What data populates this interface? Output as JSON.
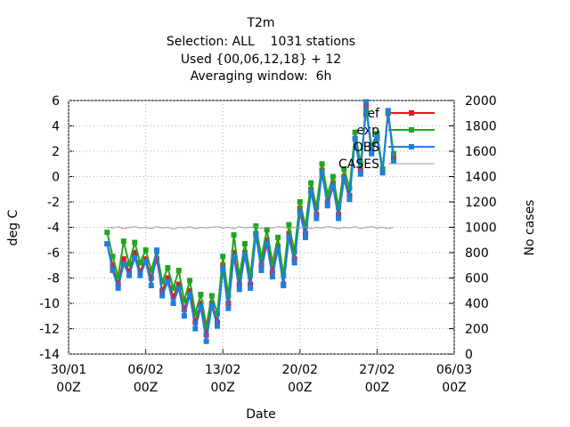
{
  "chart_data": {
    "type": "line",
    "title": "T2m",
    "subtitles": [
      "Selection: ALL    1031 stations",
      "Used {00,06,12,18} + 12",
      "Averaging window:  6h"
    ],
    "xlabel": "Date",
    "ylabel": "deg C",
    "y2label": "No cases",
    "x": [
      "02/02 12Z",
      "03/02 00Z",
      "03/02 12Z",
      "04/02 00Z",
      "04/02 12Z",
      "05/02 00Z",
      "05/02 12Z",
      "06/02 00Z",
      "06/02 12Z",
      "07/02 00Z",
      "07/02 12Z",
      "08/02 00Z",
      "08/02 12Z",
      "09/02 00Z",
      "09/02 12Z",
      "10/02 00Z",
      "10/02 12Z",
      "11/02 00Z",
      "11/02 12Z",
      "12/02 00Z",
      "12/02 12Z",
      "13/02 00Z",
      "13/02 12Z",
      "14/02 00Z",
      "14/02 12Z",
      "15/02 00Z",
      "15/02 12Z",
      "16/02 00Z",
      "16/02 12Z",
      "17/02 00Z",
      "17/02 12Z",
      "18/02 00Z",
      "18/02 12Z",
      "19/02 00Z",
      "19/02 12Z",
      "20/02 00Z",
      "20/02 12Z",
      "21/02 00Z",
      "21/02 12Z",
      "22/02 00Z",
      "22/02 12Z",
      "23/02 00Z",
      "23/02 12Z",
      "24/02 00Z",
      "24/02 12Z",
      "25/02 00Z",
      "25/02 12Z",
      "26/02 00Z",
      "26/02 12Z",
      "27/02 00Z",
      "27/02 12Z",
      "28/02 00Z",
      "28/02 12Z"
    ],
    "series": [
      {
        "name": "ref",
        "color": "#e41a1c",
        "values": [
          -5.3,
          -7,
          -8.5,
          -6.5,
          -7.5,
          -6,
          -7.5,
          -6.5,
          -8,
          -6.5,
          -9,
          -8,
          -9.5,
          -8.5,
          -10.5,
          -9,
          -11.5,
          -10,
          -12.5,
          -10,
          -11.5,
          -7,
          -10,
          -6,
          -8.5,
          -6,
          -8.5,
          -4.5,
          -7,
          -5,
          -7.5,
          -5.5,
          -8.5,
          -4.5,
          -6.5,
          -2.5,
          -4.5,
          -1,
          -3,
          0.5,
          -2,
          -0.5,
          -3,
          0,
          -1.5,
          3,
          0.5,
          5.5,
          2,
          3,
          0.5,
          5,
          1.5
        ]
      },
      {
        "name": "exp",
        "color": "#1fa61f",
        "values": [
          -4.4,
          -6.3,
          -7.9,
          -5.1,
          -6.9,
          -5.2,
          -6.8,
          -5.8,
          -7.4,
          -5.9,
          -8.3,
          -7.2,
          -8.8,
          -7.4,
          -9.8,
          -8.2,
          -10.8,
          -9.3,
          -11.8,
          -9.4,
          -10.8,
          -6.3,
          -9.4,
          -4.6,
          -7.9,
          -5.3,
          -7.8,
          -3.9,
          -6.4,
          -4.2,
          -6.8,
          -4.8,
          -7.8,
          -3.8,
          -5.9,
          -2,
          -3.9,
          -0.5,
          -2.4,
          1,
          -1.4,
          0,
          -2.4,
          0.6,
          -0.9,
          3.5,
          1,
          5.2,
          2.4,
          3.4,
          0.6,
          5.1,
          1.8
        ]
      },
      {
        "name": "OBS",
        "color": "#1e7fe0",
        "values": [
          -5.3,
          -7.4,
          -8.8,
          -6.9,
          -7.8,
          -6.4,
          -7.8,
          -6.7,
          -8.6,
          -5.8,
          -9.4,
          -8.3,
          -10,
          -8.8,
          -11,
          -9.3,
          -12,
          -10.3,
          -13,
          -10.2,
          -11.8,
          -7.3,
          -10.4,
          -6.3,
          -8.9,
          -6.2,
          -8.8,
          -4.6,
          -7.4,
          -5.3,
          -7.9,
          -5.7,
          -8.6,
          -4.8,
          -6.8,
          -2.8,
          -4.8,
          -1.2,
          -3.3,
          0.3,
          -2.3,
          -0.8,
          -3.3,
          -0.2,
          -1.8,
          3,
          0.2,
          5.9,
          1.8,
          3.1,
          0.3,
          5.2,
          1.2
        ]
      },
      {
        "name": "CASES",
        "color": "#999999",
        "axis": "y2",
        "values": [
          1000,
          995,
          1005,
          990,
          1000,
          1005,
          995,
          1000,
          990,
          1005,
          995,
          1000,
          985,
          1000,
          995,
          1005,
          990,
          1000,
          995,
          1000,
          1005,
          995,
          1000,
          990,
          1005,
          995,
          1000,
          1005,
          990,
          1000,
          995,
          1005,
          1000,
          990,
          1000,
          995,
          1005,
          990,
          1000,
          995,
          1005,
          1000,
          990,
          1000,
          995,
          1005,
          990,
          1000,
          1005,
          995,
          1000,
          990,
          1000
        ]
      }
    ],
    "xticks": [
      "30/01 00Z",
      "06/02 00Z",
      "13/02 00Z",
      "20/02 00Z",
      "27/02 00Z",
      "06/03 00Z"
    ],
    "xlim": [
      "30/01 00Z",
      "06/03 00Z"
    ],
    "ylim": [
      -14,
      6
    ],
    "yticks": [
      -14,
      -12,
      -10,
      -8,
      -6,
      -4,
      -2,
      0,
      2,
      4,
      6
    ],
    "y2lim": [
      0,
      2000
    ],
    "y2ticks": [
      0,
      200,
      400,
      600,
      800,
      1000,
      1200,
      1400,
      1600,
      1800,
      2000
    ],
    "grid": true,
    "legend": "top-right"
  }
}
